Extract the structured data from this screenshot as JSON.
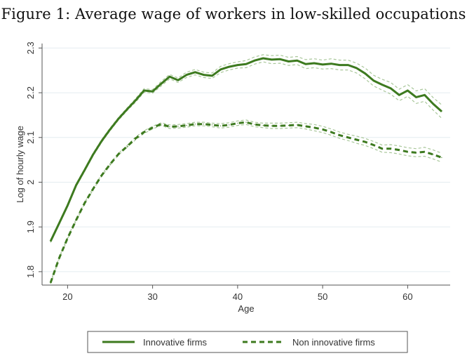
{
  "figure_title": "Figure 1: Average wage of workers in low-skilled occupations",
  "colors": {
    "series": "#3d7a1f",
    "ci": "#a9c79a",
    "grid": "#e4ecf0",
    "axis": "#555555"
  },
  "chart_data": {
    "type": "line",
    "title": "Figure 1: Average wage of workers in low-skilled occupations",
    "xlabel": "Age",
    "ylabel": "Log of hourly wage",
    "xlim": [
      17,
      65
    ],
    "ylim": [
      1.77,
      2.31
    ],
    "xticks": [
      20,
      30,
      40,
      50,
      60
    ],
    "yticks": [
      1.8,
      1.9,
      2,
      2.1,
      2.2,
      2.3
    ],
    "xtick_labels": [
      "20",
      "30",
      "40",
      "50",
      "60"
    ],
    "ytick_labels": [
      "1.8",
      "1.9",
      "2",
      "2.1",
      "2.2",
      "2.3"
    ],
    "grid": true,
    "legend_position": "bottom",
    "x": [
      18,
      19,
      20,
      21,
      22,
      23,
      24,
      25,
      26,
      27,
      28,
      29,
      30,
      31,
      32,
      33,
      34,
      35,
      36,
      37,
      38,
      39,
      40,
      41,
      42,
      43,
      44,
      45,
      46,
      47,
      48,
      49,
      50,
      51,
      52,
      53,
      54,
      55,
      56,
      57,
      58,
      59,
      60,
      61,
      62,
      63,
      64
    ],
    "series": [
      {
        "name": "Innovative firms",
        "style": "solid",
        "values": [
          1.868,
          1.908,
          1.948,
          1.993,
          2.027,
          2.062,
          2.092,
          2.118,
          2.142,
          2.163,
          2.183,
          2.205,
          2.203,
          2.22,
          2.236,
          2.228,
          2.24,
          2.246,
          2.24,
          2.238,
          2.252,
          2.258,
          2.262,
          2.264,
          2.272,
          2.277,
          2.274,
          2.275,
          2.27,
          2.272,
          2.264,
          2.266,
          2.263,
          2.265,
          2.262,
          2.262,
          2.255,
          2.243,
          2.227,
          2.218,
          2.21,
          2.195,
          2.205,
          2.19,
          2.195,
          2.175,
          2.158
        ],
        "ci_half_width": [
          0.003,
          0.003,
          0.003,
          0.003,
          0.003,
          0.003,
          0.003,
          0.003,
          0.003,
          0.003,
          0.004,
          0.004,
          0.004,
          0.005,
          0.005,
          0.005,
          0.006,
          0.006,
          0.006,
          0.006,
          0.007,
          0.007,
          0.007,
          0.008,
          0.008,
          0.008,
          0.009,
          0.009,
          0.009,
          0.009,
          0.01,
          0.01,
          0.01,
          0.011,
          0.011,
          0.011,
          0.011,
          0.012,
          0.012,
          0.012,
          0.013,
          0.013,
          0.013,
          0.014,
          0.014,
          0.014,
          0.015
        ]
      },
      {
        "name": "Non innovative firms",
        "style": "dashed",
        "values": [
          1.775,
          1.83,
          1.875,
          1.915,
          1.953,
          1.985,
          2.015,
          2.04,
          2.063,
          2.08,
          2.098,
          2.112,
          2.122,
          2.13,
          2.124,
          2.125,
          2.127,
          2.13,
          2.13,
          2.128,
          2.126,
          2.128,
          2.132,
          2.134,
          2.129,
          2.127,
          2.126,
          2.126,
          2.127,
          2.128,
          2.125,
          2.122,
          2.118,
          2.112,
          2.105,
          2.1,
          2.095,
          2.09,
          2.083,
          2.075,
          2.075,
          2.072,
          2.068,
          2.066,
          2.068,
          2.062,
          2.055
        ],
        "ci_half_width": [
          0.002,
          0.002,
          0.002,
          0.002,
          0.002,
          0.002,
          0.002,
          0.002,
          0.002,
          0.002,
          0.003,
          0.003,
          0.003,
          0.003,
          0.004,
          0.004,
          0.004,
          0.004,
          0.004,
          0.004,
          0.005,
          0.005,
          0.005,
          0.005,
          0.005,
          0.005,
          0.006,
          0.006,
          0.006,
          0.006,
          0.006,
          0.007,
          0.007,
          0.007,
          0.007,
          0.007,
          0.008,
          0.008,
          0.008,
          0.008,
          0.009,
          0.009,
          0.009,
          0.009,
          0.01,
          0.01,
          0.01
        ]
      }
    ]
  }
}
